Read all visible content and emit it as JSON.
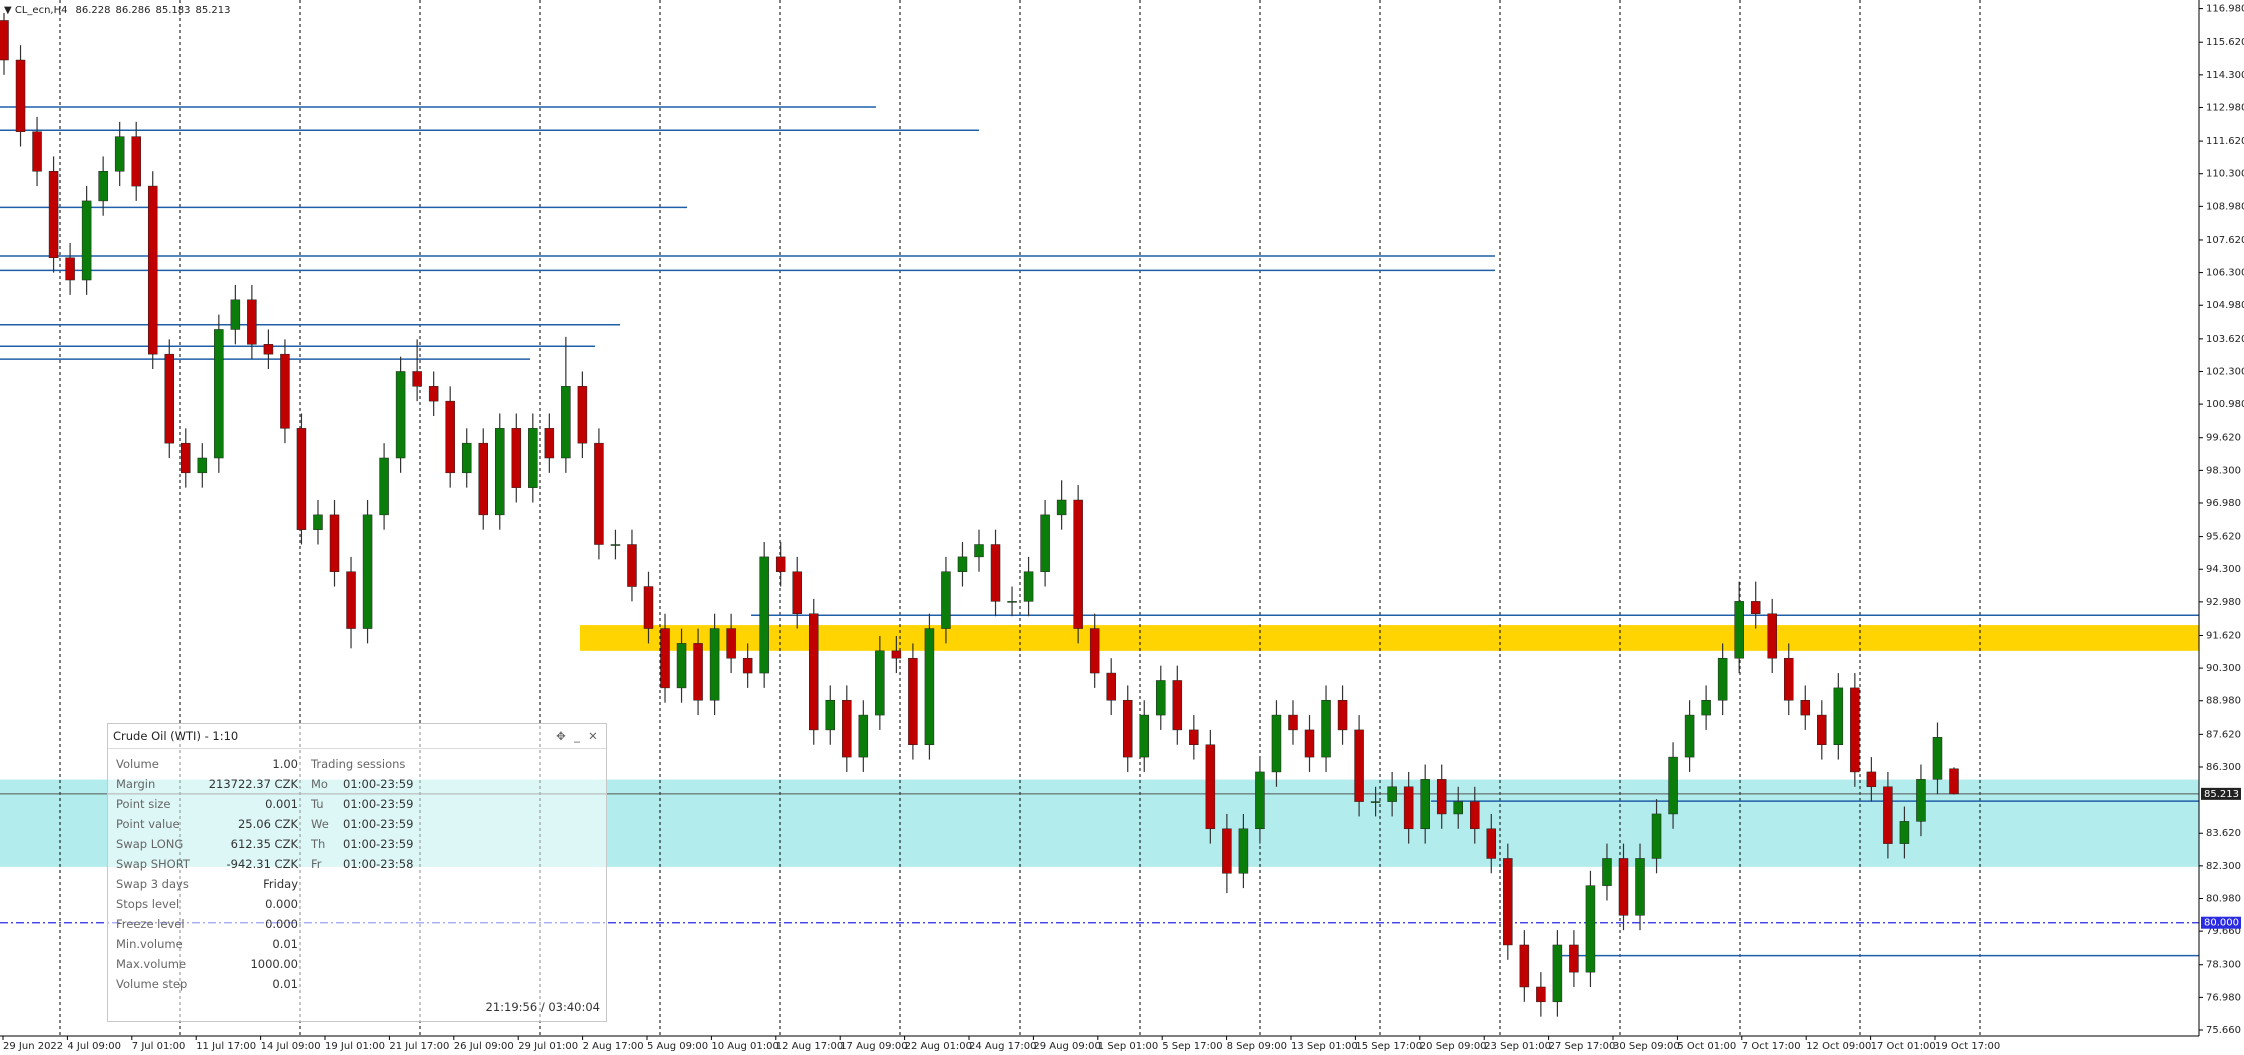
{
  "chart_data": {
    "type": "candlestick",
    "title": "CL_ecn,H4",
    "ylim": [
      75.66,
      116.98
    ],
    "yticks": [
      {
        "value": 116.98,
        "label": "116.980"
      },
      {
        "value": 115.62,
        "label": "115.620"
      },
      {
        "value": 114.3,
        "label": "114.300"
      },
      {
        "value": 112.98,
        "label": "112.980"
      },
      {
        "value": 111.62,
        "label": "111.620"
      },
      {
        "value": 110.3,
        "label": "110.300"
      },
      {
        "value": 108.98,
        "label": "108.980"
      },
      {
        "value": 107.62,
        "label": "107.620"
      },
      {
        "value": 106.3,
        "label": "106.300"
      },
      {
        "value": 104.98,
        "label": "104.980"
      },
      {
        "value": 103.62,
        "label": "103.620"
      },
      {
        "value": 102.3,
        "label": "102.300"
      },
      {
        "value": 100.98,
        "label": "100.980"
      },
      {
        "value": 99.62,
        "label": "99.620"
      },
      {
        "value": 98.3,
        "label": "98.300"
      },
      {
        "value": 96.98,
        "label": "96.980"
      },
      {
        "value": 95.62,
        "label": "95.620"
      },
      {
        "value": 94.3,
        "label": "94.300"
      },
      {
        "value": 92.98,
        "label": "92.980"
      },
      {
        "value": 91.62,
        "label": "91.620"
      },
      {
        "value": 90.3,
        "label": "90.300"
      },
      {
        "value": 88.98,
        "label": "88.980"
      },
      {
        "value": 87.62,
        "label": "87.620"
      },
      {
        "value": 86.3,
        "label": "86.300"
      },
      {
        "value": 83.62,
        "label": "83.620"
      },
      {
        "value": 82.3,
        "label": "82.300"
      },
      {
        "value": 80.98,
        "label": "80.980"
      },
      {
        "value": 79.66,
        "label": "79.660"
      },
      {
        "value": 78.3,
        "label": "78.300"
      },
      {
        "value": 76.98,
        "label": "76.980"
      },
      {
        "value": 75.66,
        "label": "75.660"
      }
    ],
    "open": [
      116.5,
      114.9,
      112,
      110.4,
      106.9,
      106,
      109.2,
      110.4,
      111.8,
      109.8,
      103,
      99.4,
      98.2,
      98.8,
      104,
      105.2,
      103.4,
      103,
      100,
      95.9,
      96.5,
      94.2,
      91.9,
      96.5,
      98.8,
      102.3,
      101.7,
      101.1,
      98.2,
      99.4,
      96.5,
      100,
      97.6,
      100,
      98.8,
      101.7,
      99.4,
      95.3,
      95.3,
      93.6,
      91.9,
      89.5,
      91.3,
      89,
      91.9,
      90.7,
      90.1,
      94.8,
      94.2,
      92.5,
      87.8,
      89,
      86.7,
      88.4,
      91,
      90.7,
      87.2,
      91.9,
      94.2,
      94.8,
      95.3,
      93,
      93,
      94.2,
      96.5,
      97.1,
      91.9,
      90.1,
      89,
      86.7,
      88.4,
      89.8,
      87.8,
      87.2,
      83.8,
      82,
      83.8,
      86.1,
      88.4,
      87.8,
      86.7,
      89,
      87.8,
      84.9,
      84.9,
      85.5,
      83.8,
      85.8,
      84.4,
      84.9,
      83.8,
      82.6,
      79.1,
      77.4,
      76.8,
      79.1,
      78,
      81.5,
      82.6,
      80.3,
      82.6,
      84.4,
      86.7,
      88.4,
      89,
      90.7,
      93,
      92.5,
      90.7,
      89,
      88.4,
      87.2,
      89.5,
      86.1,
      85.5,
      83.2,
      84.1,
      85.8,
      86.228
    ],
    "high": [
      116.8,
      115.5,
      112.6,
      111.0,
      107.5,
      109.8,
      111.0,
      112.4,
      112.4,
      110.4,
      103.6,
      100.0,
      99.4,
      104.6,
      105.8,
      105.8,
      104.0,
      103.6,
      100.6,
      97.1,
      97.1,
      94.8,
      97.1,
      99.4,
      102.9,
      103.6,
      102.3,
      101.7,
      100.0,
      100.0,
      100.6,
      100.6,
      100.6,
      100.6,
      103.7,
      102.3,
      100.0,
      95.9,
      95.9,
      94.2,
      92.5,
      91.9,
      91.9,
      92.5,
      92.5,
      91.3,
      95.4,
      95.4,
      94.8,
      93.1,
      89.6,
      89.6,
      89.0,
      91.6,
      91.6,
      91.3,
      92.5,
      94.8,
      95.4,
      95.9,
      95.9,
      93.6,
      94.8,
      97.1,
      97.9,
      97.7,
      92.5,
      90.7,
      89.6,
      89.0,
      90.4,
      90.4,
      88.4,
      87.8,
      84.4,
      84.4,
      86.7,
      89.0,
      89.0,
      88.4,
      89.6,
      89.6,
      88.4,
      85.5,
      86.1,
      86.1,
      86.4,
      86.4,
      85.5,
      85.5,
      84.4,
      83.2,
      79.7,
      78.0,
      79.7,
      79.7,
      82.1,
      83.2,
      83.2,
      83.2,
      85.0,
      87.3,
      89.0,
      89.6,
      91.3,
      93.8,
      93.8,
      93.1,
      91.3,
      89.6,
      89.0,
      90.1,
      90.1,
      86.7,
      86.1,
      84.7,
      86.4,
      88.1,
      86.286
    ],
    "low": [
      114.3,
      111.4,
      109.8,
      106.3,
      105.4,
      105.4,
      108.6,
      109.8,
      109.2,
      102.4,
      98.8,
      97.6,
      97.6,
      98.2,
      103.4,
      102.8,
      102.4,
      99.4,
      95.3,
      95.3,
      93.6,
      91.1,
      91.3,
      95.9,
      98.2,
      101.1,
      100.5,
      97.6,
      97.6,
      95.9,
      95.9,
      97.0,
      97.0,
      98.2,
      98.2,
      98.8,
      94.7,
      94.7,
      93.0,
      91.3,
      88.9,
      88.9,
      88.4,
      88.4,
      90.1,
      89.5,
      89.5,
      93.6,
      91.9,
      87.2,
      87.2,
      86.1,
      86.1,
      87.8,
      90.1,
      86.6,
      86.6,
      91.3,
      93.6,
      94.2,
      92.4,
      92.4,
      92.4,
      93.6,
      95.9,
      91.3,
      89.5,
      88.4,
      86.1,
      86.1,
      87.8,
      87.2,
      86.6,
      83.2,
      81.2,
      81.4,
      83.2,
      85.5,
      87.2,
      86.1,
      86.1,
      87.2,
      84.3,
      84.3,
      84.3,
      83.2,
      83.2,
      83.8,
      83.8,
      83.2,
      82.0,
      78.5,
      76.8,
      76.2,
      76.2,
      77.4,
      77.4,
      80.9,
      79.7,
      79.7,
      82.0,
      83.8,
      86.1,
      87.8,
      88.4,
      90.1,
      91.9,
      90.1,
      88.4,
      87.8,
      86.6,
      86.6,
      85.5,
      84.9,
      82.6,
      82.6,
      83.5,
      85.2,
      85.183
    ],
    "close": [
      114.9,
      112,
      110.4,
      106.9,
      106,
      109.2,
      110.4,
      111.8,
      109.8,
      103,
      99.4,
      98.2,
      98.8,
      104,
      105.2,
      103.4,
      103,
      100,
      95.9,
      96.5,
      94.2,
      91.9,
      96.5,
      98.8,
      102.3,
      101.7,
      101.1,
      98.2,
      99.4,
      96.5,
      100,
      97.6,
      100,
      98.8,
      101.7,
      99.4,
      95.3,
      95.3,
      93.6,
      91.9,
      89.5,
      91.3,
      89,
      91.9,
      90.7,
      90.1,
      94.8,
      94.2,
      92.5,
      87.8,
      89,
      86.7,
      88.4,
      91,
      90.7,
      87.2,
      91.9,
      94.2,
      94.8,
      95.3,
      93,
      93,
      94.2,
      96.5,
      97.1,
      91.9,
      90.1,
      89,
      86.7,
      88.4,
      89.8,
      87.8,
      87.2,
      83.8,
      82,
      83.8,
      86.1,
      88.4,
      87.8,
      86.7,
      89,
      87.8,
      84.9,
      84.9,
      85.5,
      83.8,
      85.8,
      84.4,
      84.9,
      83.8,
      82.6,
      79.1,
      77.4,
      76.8,
      79.1,
      78,
      81.5,
      82.6,
      80.3,
      82.6,
      84.4,
      86.7,
      88.4,
      89,
      90.7,
      93,
      92.5,
      90.7,
      89,
      88.4,
      87.2,
      89.5,
      86.1,
      85.5,
      83.2,
      84.1,
      85.8,
      87.5,
      85.213
    ],
    "up_color": "#0b7d0b",
    "down_color": "#c00000",
    "time_labels": [
      "29 Jun 2022",
      "4 Jul 09:00",
      "7 Jul 01:00",
      "11 Jul 17:00",
      "14 Jul 09:00",
      "19 Jul 01:00",
      "21 Jul 17:00",
      "26 Jul 09:00",
      "29 Jul 01:00",
      "2 Aug 17:00",
      "5 Aug 09:00",
      "10 Aug 01:00",
      "12 Aug 17:00",
      "17 Aug 09:00",
      "22 Aug 01:00",
      "24 Aug 17:00",
      "29 Aug 09:00",
      "1 Sep 01:00",
      "5 Sep 17:00",
      "8 Sep 09:00",
      "13 Sep 01:00",
      "15 Sep 17:00",
      "20 Sep 09:00",
      "23 Sep 01:00",
      "27 Sep 17:00",
      "30 Sep 09:00",
      "5 Oct 01:00",
      "7 Oct 17:00",
      "12 Oct 09:00",
      "17 Oct 01:00",
      "19 Oct 17:00"
    ],
    "levels": [
      113.0,
      112.06,
      108.94,
      106.97,
      106.39,
      104.19,
      103.32,
      102.8,
      92.44,
      84.92,
      78.67
    ],
    "level_color": "#1f5fa8",
    "zones": [
      {
        "from": 91.0,
        "to": 92.04,
        "color": "#ffd400"
      },
      {
        "from": 82.26,
        "to": 85.79,
        "color": "#b3ecec"
      }
    ],
    "current_price": 85.213,
    "alert_level": {
      "value": 80,
      "label": "80.000"
    },
    "alert_color": "#2a2ae0"
  },
  "info_panel": {
    "title": "Crude Oil (WTI) - 1:10",
    "rows": [
      [
        "Volume",
        "1.00"
      ],
      [
        "Margin",
        "213722.37 CZK"
      ],
      [
        "Point size",
        "0.001"
      ],
      [
        "Point value",
        "25.06 CZK"
      ],
      [
        "Swap LONG",
        "612.35 CZK"
      ],
      [
        "Swap SHORT",
        "-942.31 CZK"
      ],
      [
        "Swap 3 days",
        "Friday"
      ],
      [
        "Stops level",
        "0.000"
      ],
      [
        "Freeze level",
        "0.000"
      ],
      [
        "Min.volume",
        "0.01"
      ],
      [
        "Max.volume",
        "1000.00"
      ],
      [
        "Volume step",
        "0.01"
      ]
    ],
    "sessions_title": "Trading sessions",
    "sessions": [
      [
        "Mo",
        "01:00-23:59"
      ],
      [
        "Tu",
        "01:00-23:59"
      ],
      [
        "We",
        "01:00-23:59"
      ],
      [
        "Th",
        "01:00-23:59"
      ],
      [
        "Fr",
        "01:00-23:58"
      ]
    ],
    "time": "21:19:56 / 03:40:04"
  }
}
